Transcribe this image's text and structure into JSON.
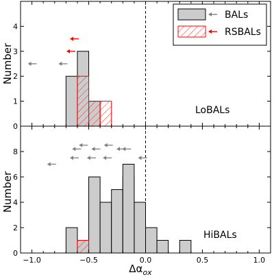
{
  "chart_data": [
    {
      "type": "histogram",
      "panel_label": "LoBALs",
      "xlabel": "Δα",
      "xlabel_sub": "ox",
      "ylabel": "Number",
      "xlim": [
        -1.1,
        1.1
      ],
      "ylim": [
        0,
        5
      ],
      "yticks": [
        0,
        1,
        2,
        3,
        4
      ],
      "bin_width": 0.1,
      "vline_x": 0,
      "series": [
        {
          "name": "BALs",
          "bins": [
            {
              "x0": -0.7,
              "count": 2
            },
            {
              "x0": -0.6,
              "count": 3
            },
            {
              "x0": -0.5,
              "count": 1
            }
          ],
          "color": "#cccccc",
          "edge": "#000000"
        },
        {
          "name": "RSBALs",
          "bins": [
            {
              "x0": -0.6,
              "count": 2
            },
            {
              "x0": -0.5,
              "count": 1
            },
            {
              "x0": -0.4,
              "count": 1
            }
          ],
          "color": "#ff0000",
          "hatch": true
        }
      ],
      "limits": [
        {
          "series": "BALs",
          "x": -1.0,
          "y": 2.5
        },
        {
          "series": "BALs",
          "x": -0.73,
          "y": 2.5
        },
        {
          "series": "RSBALs",
          "x": -0.66,
          "y": 3.0
        },
        {
          "series": "RSBALs",
          "x": -0.63,
          "y": 3.5
        }
      ]
    },
    {
      "type": "histogram",
      "panel_label": "HiBALs",
      "xlabel": "Δα",
      "xlabel_sub": "ox",
      "ylabel": "Number",
      "xlim": [
        -1.1,
        1.1
      ],
      "ylim": [
        0,
        10
      ],
      "yticks": [
        0,
        2,
        4,
        6,
        8
      ],
      "xticks": [
        -1.0,
        -0.5,
        0.0,
        0.5,
        1.0
      ],
      "xtick_labels": [
        "−1.0",
        "−0.5",
        "0.0",
        "0.5",
        "1.0"
      ],
      "bin_width": 0.1,
      "vline_x": 0,
      "series": [
        {
          "name": "BALs",
          "bins": [
            {
              "x0": -0.7,
              "count": 2
            },
            {
              "x0": -0.6,
              "count": 1
            },
            {
              "x0": -0.5,
              "count": 6
            },
            {
              "x0": -0.4,
              "count": 4
            },
            {
              "x0": -0.3,
              "count": 5
            },
            {
              "x0": -0.2,
              "count": 6
            },
            {
              "x0": -0.1,
              "count": 4
            },
            {
              "x0": 0.0,
              "count": 2
            },
            {
              "x0": 0.1,
              "count": 1
            },
            {
              "x0": 0.3,
              "count": 1
            }
          ],
          "color": "#cccccc",
          "edge": "#000000"
        },
        {
          "name": "RSBALs",
          "bins": [
            {
              "x0": -0.6,
              "count": 1
            }
          ],
          "color": "#ff0000",
          "hatch": true
        }
      ],
      "extra_step": {
        "x0": -0.2,
        "x1": -0.1,
        "count": 7
      },
      "limits": [
        {
          "series": "BALs",
          "x": -0.83,
          "y": 7.0
        },
        {
          "series": "BALs",
          "x": -0.63,
          "y": 7.5
        },
        {
          "series": "BALs",
          "x": -0.48,
          "y": 7.5
        },
        {
          "series": "BALs",
          "x": -0.34,
          "y": 7.5
        },
        {
          "series": "BALs",
          "x": -0.03,
          "y": 7.5
        },
        {
          "series": "BALs",
          "x": -0.61,
          "y": 8.2
        },
        {
          "series": "BALs",
          "x": -0.44,
          "y": 8.2
        },
        {
          "series": "BALs",
          "x": -0.22,
          "y": 8.2
        },
        {
          "series": "BALs",
          "x": -0.55,
          "y": 8.5
        },
        {
          "series": "BALs",
          "x": -0.33,
          "y": 8.5
        },
        {
          "series": "BALs",
          "x": -0.17,
          "y": 8.2
        }
      ]
    }
  ],
  "legend": {
    "placement": "top-right",
    "entries": [
      {
        "label": "BALs",
        "fill": "#cccccc",
        "arrow_color": "#808080"
      },
      {
        "label": "RSBALs",
        "fill": "#ffffff",
        "hatch_color": "#ff0000",
        "arrow_color": "#ff0000"
      }
    ]
  }
}
